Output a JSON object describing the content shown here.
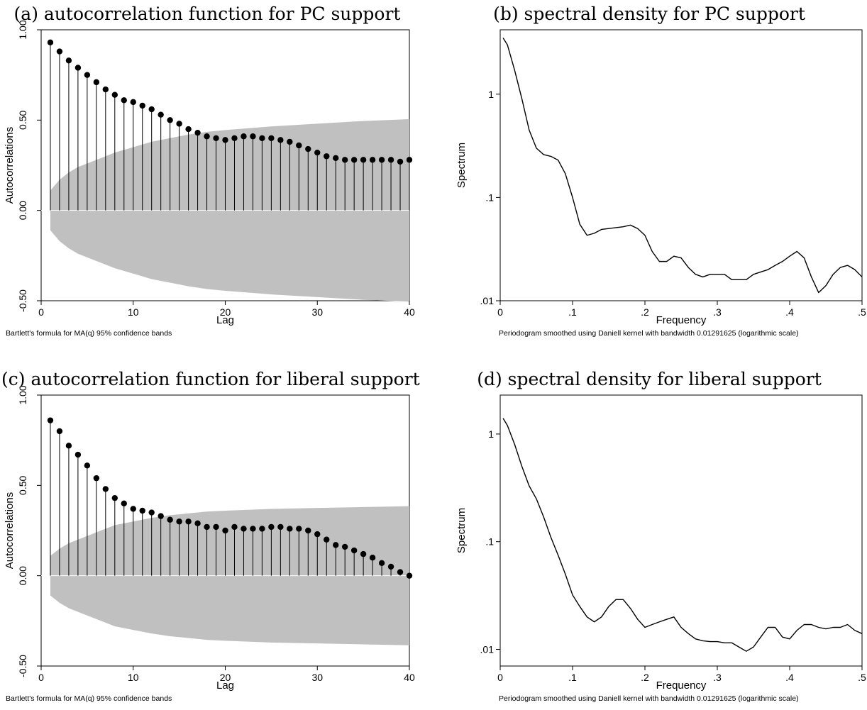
{
  "chart_data": [
    {
      "id": "a",
      "type": "scatter",
      "title": "(a) autocorrelation function for PC support",
      "xlabel": "Lag",
      "ylabel": "Autocorrelations",
      "note": "Bartlett's formula for MA(q) 95% confidence bands",
      "xlim": [
        0,
        40
      ],
      "ylim": [
        -0.5,
        1.0
      ],
      "xticks": [
        "0",
        "10",
        "20",
        "30",
        "40"
      ],
      "yticks": [
        "-0.50",
        "0.00",
        "0.50",
        "1.00"
      ],
      "grid": false,
      "x": [
        1,
        2,
        3,
        4,
        5,
        6,
        7,
        8,
        9,
        10,
        11,
        12,
        13,
        14,
        15,
        16,
        17,
        18,
        19,
        20,
        21,
        22,
        23,
        24,
        25,
        26,
        27,
        28,
        29,
        30,
        31,
        32,
        33,
        34,
        35,
        36,
        37,
        38,
        39,
        40
      ],
      "values": [
        0.93,
        0.88,
        0.83,
        0.79,
        0.75,
        0.71,
        0.67,
        0.64,
        0.61,
        0.6,
        0.58,
        0.56,
        0.53,
        0.5,
        0.48,
        0.45,
        0.43,
        0.41,
        0.4,
        0.39,
        0.4,
        0.41,
        0.41,
        0.4,
        0.4,
        0.39,
        0.38,
        0.36,
        0.34,
        0.32,
        0.3,
        0.29,
        0.28,
        0.28,
        0.28,
        0.28,
        0.28,
        0.28,
        0.27,
        0.28
      ],
      "band": [
        [
          1,
          0.11
        ],
        [
          2,
          0.17
        ],
        [
          3,
          0.21
        ],
        [
          4,
          0.24
        ],
        [
          6,
          0.28
        ],
        [
          8,
          0.32
        ],
        [
          10,
          0.35
        ],
        [
          12,
          0.38
        ],
        [
          14,
          0.4
        ],
        [
          16,
          0.42
        ],
        [
          18,
          0.435
        ],
        [
          20,
          0.445
        ],
        [
          25,
          0.465
        ],
        [
          30,
          0.48
        ],
        [
          35,
          0.495
        ],
        [
          40,
          0.505
        ]
      ]
    },
    {
      "id": "b",
      "type": "line",
      "title": "(b) spectral density for PC support",
      "xlabel": "Frequency",
      "ylabel": "Spectrum",
      "note": "Periodogram smoothed using Daniell kernel with bandwidth 0.01291625 (logarithmic scale)",
      "xlim": [
        0,
        0.5
      ],
      "ylim": [
        0.01,
        4.2
      ],
      "yscale": "log",
      "xticks": [
        {
          "v": 0,
          "label": "0"
        },
        {
          "v": 0.1,
          "label": ".1"
        },
        {
          "v": 0.2,
          "label": ".2"
        },
        {
          "v": 0.3,
          "label": ".3"
        },
        {
          "v": 0.4,
          "label": ".4"
        },
        {
          "v": 0.5,
          "label": ".5"
        }
      ],
      "yticks": [
        {
          "v": 0.01,
          "label": ".01"
        },
        {
          "v": 0.1,
          "label": ".1"
        },
        {
          "v": 1,
          "label": "1"
        }
      ],
      "grid": false,
      "x": [
        0.004,
        0.01,
        0.02,
        0.03,
        0.04,
        0.05,
        0.06,
        0.07,
        0.08,
        0.09,
        0.1,
        0.11,
        0.12,
        0.13,
        0.14,
        0.15,
        0.16,
        0.17,
        0.18,
        0.19,
        0.2,
        0.21,
        0.22,
        0.23,
        0.24,
        0.25,
        0.26,
        0.27,
        0.28,
        0.29,
        0.3,
        0.31,
        0.32,
        0.33,
        0.34,
        0.35,
        0.36,
        0.37,
        0.38,
        0.39,
        0.4,
        0.41,
        0.42,
        0.43,
        0.44,
        0.45,
        0.46,
        0.47,
        0.48,
        0.49,
        0.5
      ],
      "values": [
        3.5,
        3.0,
        1.7,
        0.9,
        0.45,
        0.3,
        0.26,
        0.25,
        0.23,
        0.17,
        0.1,
        0.055,
        0.043,
        0.045,
        0.049,
        0.05,
        0.051,
        0.052,
        0.054,
        0.05,
        0.043,
        0.03,
        0.024,
        0.024,
        0.027,
        0.026,
        0.021,
        0.018,
        0.017,
        0.018,
        0.018,
        0.018,
        0.016,
        0.016,
        0.016,
        0.018,
        0.019,
        0.02,
        0.022,
        0.024,
        0.027,
        0.03,
        0.026,
        0.017,
        0.012,
        0.014,
        0.018,
        0.021,
        0.022,
        0.02,
        0.017
      ]
    },
    {
      "id": "c",
      "type": "scatter",
      "title": "(c) autocorrelation function for liberal support",
      "xlabel": "Lag",
      "ylabel": "Autocorrelations",
      "note": "Bartlett's formula for MA(q) 95% confidence bands",
      "xlim": [
        0,
        40
      ],
      "ylim": [
        -0.5,
        1.0
      ],
      "xticks": [
        "0",
        "10",
        "20",
        "30",
        "40"
      ],
      "yticks": [
        "-0.50",
        "0.00",
        "0.50",
        "1.00"
      ],
      "grid": false,
      "x": [
        1,
        2,
        3,
        4,
        5,
        6,
        7,
        8,
        9,
        10,
        11,
        12,
        13,
        14,
        15,
        16,
        17,
        18,
        19,
        20,
        21,
        22,
        23,
        24,
        25,
        26,
        27,
        28,
        29,
        30,
        31,
        32,
        33,
        34,
        35,
        36,
        37,
        38,
        39,
        40
      ],
      "values": [
        0.86,
        0.8,
        0.72,
        0.67,
        0.61,
        0.54,
        0.48,
        0.43,
        0.4,
        0.37,
        0.36,
        0.35,
        0.33,
        0.31,
        0.3,
        0.3,
        0.29,
        0.27,
        0.27,
        0.25,
        0.27,
        0.26,
        0.26,
        0.26,
        0.27,
        0.27,
        0.26,
        0.26,
        0.25,
        0.23,
        0.2,
        0.17,
        0.16,
        0.14,
        0.12,
        0.1,
        0.07,
        0.05,
        0.02,
        0.0
      ],
      "band": [
        [
          1,
          0.11
        ],
        [
          2,
          0.15
        ],
        [
          3,
          0.18
        ],
        [
          4,
          0.2
        ],
        [
          6,
          0.24
        ],
        [
          8,
          0.28
        ],
        [
          10,
          0.3
        ],
        [
          12,
          0.32
        ],
        [
          14,
          0.335
        ],
        [
          16,
          0.345
        ],
        [
          18,
          0.355
        ],
        [
          20,
          0.36
        ],
        [
          25,
          0.37
        ],
        [
          30,
          0.375
        ],
        [
          35,
          0.38
        ],
        [
          40,
          0.385
        ]
      ]
    },
    {
      "id": "d",
      "type": "line",
      "title": "(d) spectral density for liberal support",
      "xlabel": "Frequency",
      "ylabel": "Spectrum",
      "note": "Periodogram smoothed using Daniell kernel with bandwidth 0.01291625 (logarithmic scale)",
      "xlim": [
        0,
        0.5
      ],
      "ylim": [
        0.007,
        2.3
      ],
      "yscale": "log",
      "xticks": [
        {
          "v": 0,
          "label": "0"
        },
        {
          "v": 0.1,
          "label": ".1"
        },
        {
          "v": 0.2,
          "label": ".2"
        },
        {
          "v": 0.3,
          "label": ".3"
        },
        {
          "v": 0.4,
          "label": ".4"
        },
        {
          "v": 0.5,
          "label": ".5"
        }
      ],
      "yticks": [
        {
          "v": 0.01,
          "label": ".01"
        },
        {
          "v": 0.1,
          "label": ".1"
        },
        {
          "v": 1,
          "label": "1"
        }
      ],
      "grid": false,
      "x": [
        0.004,
        0.01,
        0.02,
        0.03,
        0.04,
        0.05,
        0.06,
        0.07,
        0.08,
        0.09,
        0.1,
        0.11,
        0.12,
        0.13,
        0.14,
        0.15,
        0.16,
        0.17,
        0.18,
        0.19,
        0.2,
        0.21,
        0.22,
        0.23,
        0.24,
        0.25,
        0.26,
        0.27,
        0.28,
        0.29,
        0.3,
        0.31,
        0.32,
        0.33,
        0.34,
        0.35,
        0.36,
        0.37,
        0.38,
        0.39,
        0.4,
        0.41,
        0.42,
        0.43,
        0.44,
        0.45,
        0.46,
        0.47,
        0.48,
        0.49,
        0.5
      ],
      "values": [
        1.4,
        1.2,
        0.8,
        0.5,
        0.33,
        0.25,
        0.17,
        0.11,
        0.075,
        0.05,
        0.032,
        0.025,
        0.02,
        0.018,
        0.02,
        0.025,
        0.029,
        0.029,
        0.024,
        0.019,
        0.016,
        0.017,
        0.018,
        0.019,
        0.02,
        0.016,
        0.014,
        0.0125,
        0.012,
        0.0118,
        0.0118,
        0.0115,
        0.0115,
        0.0105,
        0.0096,
        0.0105,
        0.013,
        0.016,
        0.016,
        0.013,
        0.0125,
        0.015,
        0.017,
        0.017,
        0.016,
        0.0155,
        0.016,
        0.016,
        0.017,
        0.015,
        0.014
      ]
    }
  ]
}
